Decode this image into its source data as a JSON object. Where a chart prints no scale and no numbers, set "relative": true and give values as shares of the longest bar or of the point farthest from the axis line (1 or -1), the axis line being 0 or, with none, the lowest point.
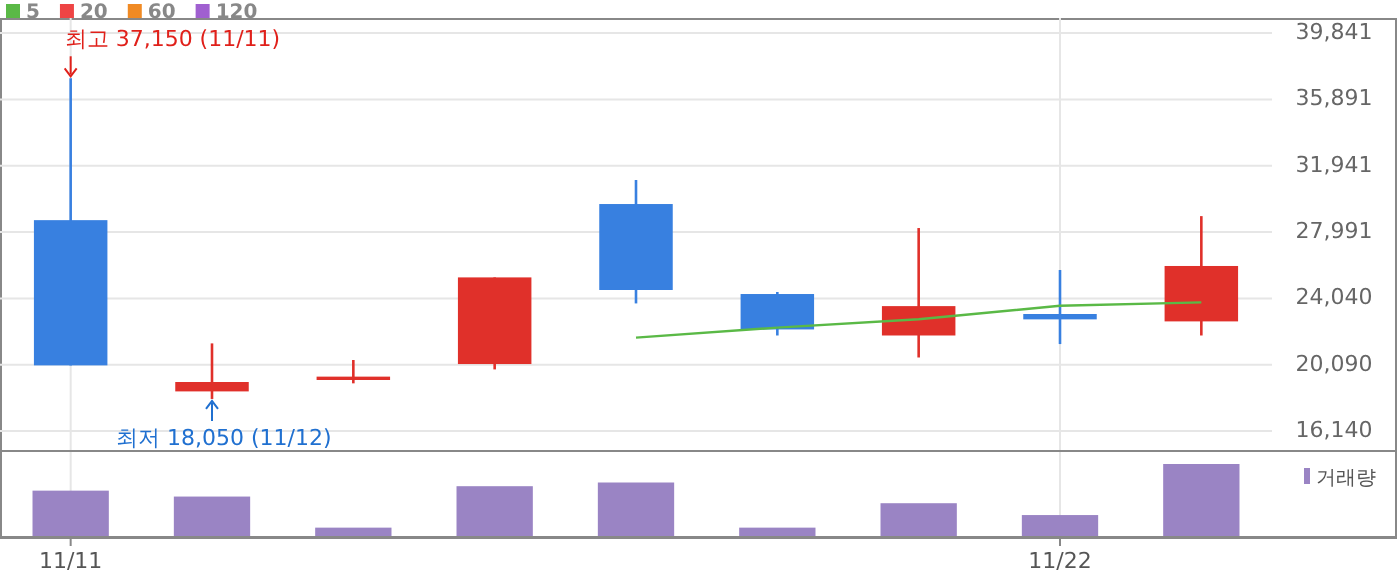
{
  "chart_data": [
    {
      "type": "candlestick",
      "categories": [
        "11/11",
        null,
        null,
        null,
        null,
        null,
        null,
        "11/22",
        null
      ],
      "ohlc": [
        [
          28700,
          37150,
          20050,
          20050
        ],
        [
          18500,
          21360,
          18050,
          19060
        ],
        [
          19180,
          20370,
          18980,
          19380
        ],
        [
          20130,
          25290,
          19810,
          25290
        ],
        [
          29660,
          31090,
          23740,
          24540
        ],
        [
          24300,
          24420,
          21830,
          22190
        ],
        [
          21830,
          28230,
          20520,
          23580
        ],
        [
          23110,
          25730,
          21320,
          22790
        ],
        [
          22670,
          28940,
          21830,
          25970
        ]
      ],
      "colors": [
        "#3880e0",
        "#e0302a",
        "#e0302a",
        "#e0302a",
        "#3880e0",
        "#3880e0",
        "#e0302a",
        "#3880e0",
        "#e0302a"
      ],
      "series": [
        {
          "name": "5",
          "type": "line",
          "color": "#5ab946",
          "values": [
            null,
            null,
            null,
            null,
            21700,
            22300,
            22800,
            23600,
            23800
          ]
        },
        {
          "name": "20",
          "type": "line",
          "color": "#ee4444",
          "values": [
            null,
            null,
            null,
            null,
            null,
            null,
            null,
            null,
            null
          ]
        },
        {
          "name": "60",
          "type": "line",
          "color": "#f08a24",
          "values": [
            null,
            null,
            null,
            null,
            null,
            null,
            null,
            null,
            null
          ]
        },
        {
          "name": "120",
          "type": "line",
          "color": "#a060d0",
          "values": [
            null,
            null,
            null,
            null,
            null,
            null,
            null,
            null,
            null
          ]
        }
      ],
      "ylim": [
        15010,
        40740
      ],
      "yticks": [
        {
          "value": 16140,
          "label": "16,140"
        },
        {
          "value": 20090,
          "label": "20,090"
        },
        {
          "value": 24040,
          "label": "24,040"
        },
        {
          "value": 27991,
          "label": "27,991"
        },
        {
          "value": 31941,
          "label": "31,941"
        },
        {
          "value": 35891,
          "label": "35,891"
        },
        {
          "value": 39841,
          "label": "39,841"
        }
      ],
      "grid": true,
      "legend": "top left",
      "tick_labels": "y",
      "annotations": [
        {
          "text": "최고 37,150 (11/11)",
          "x": "11/11",
          "y": 37150
        },
        {
          "text": "최저 18,050 (11/12)",
          "y": 18050
        }
      ]
    },
    {
      "type": "bar",
      "categories": [
        "11/11",
        null,
        null,
        null,
        null,
        null,
        null,
        "11/22",
        null
      ],
      "series": [
        {
          "name": "거래량",
          "color": "#9a84c4",
          "values": [
            0.64,
            0.56,
            0.14,
            0.7,
            0.75,
            0.14,
            0.47,
            0.31,
            1
          ]
        }
      ],
      "relative": true,
      "legend": "top right",
      "grid": "x",
      "tick_labels": "x"
    }
  ]
}
